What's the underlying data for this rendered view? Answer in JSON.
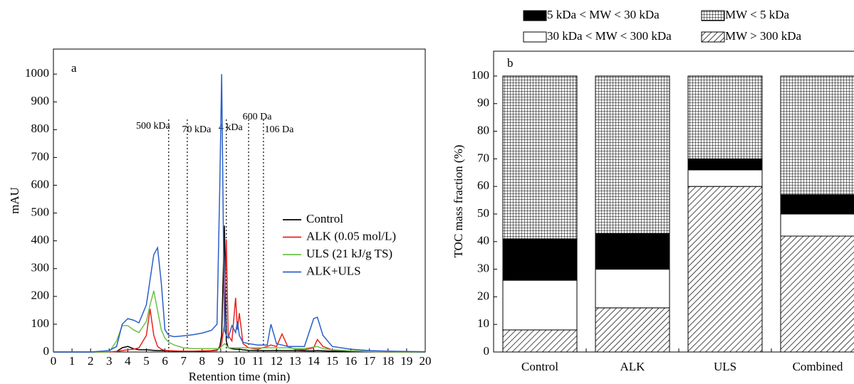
{
  "chart_data": [
    {
      "type": "line",
      "panel": "a",
      "x_label": "Retention time (min)",
      "y_label": "mAU",
      "xlim": [
        0,
        20
      ],
      "xticks": [
        0,
        1,
        2,
        3,
        4,
        5,
        6,
        7,
        8,
        9,
        10,
        11,
        12,
        13,
        14,
        15,
        16,
        17,
        18,
        19,
        20
      ],
      "ylim": [
        0,
        1090
      ],
      "yticks": [
        0,
        100,
        200,
        300,
        400,
        500,
        600,
        700,
        800,
        900,
        1000
      ],
      "x": [
        0,
        1,
        2,
        3,
        3.4,
        3.7,
        4,
        4.3,
        4.6,
        5,
        5.2,
        5.4,
        5.6,
        5.8,
        6,
        6.2,
        6.5,
        7,
        7.5,
        8,
        8.5,
        8.8,
        8.95,
        9.05,
        9.2,
        9.3,
        9.4,
        9.6,
        9.8,
        9.9,
        10,
        10.2,
        10.5,
        11,
        11.5,
        11.7,
        12,
        12.3,
        12.6,
        13,
        13.5,
        14,
        14.2,
        14.5,
        15,
        16,
        17,
        18,
        19,
        20
      ],
      "series": [
        {
          "name": "Control",
          "color": "#000000",
          "values": [
            0,
            0,
            0,
            0,
            2,
            15,
            20,
            12,
            8,
            8,
            7,
            6,
            5,
            5,
            4,
            4,
            3,
            3,
            3,
            3,
            4,
            6,
            20,
            60,
            455,
            40,
            15,
            12,
            10,
            10,
            10,
            8,
            6,
            5,
            5,
            5,
            6,
            5,
            5,
            5,
            4,
            4,
            5,
            4,
            3,
            2,
            1,
            0,
            0,
            0
          ]
        },
        {
          "name": "ALK (0.05 mol/L)",
          "color": "#e8221e",
          "values": [
            0,
            0,
            0,
            0,
            2,
            5,
            8,
            10,
            15,
            60,
            155,
            60,
            20,
            10,
            6,
            5,
            4,
            3,
            3,
            4,
            5,
            8,
            15,
            30,
            100,
            405,
            60,
            40,
            195,
            80,
            140,
            30,
            15,
            10,
            20,
            25,
            20,
            65,
            20,
            10,
            8,
            15,
            45,
            20,
            8,
            4,
            2,
            1,
            0,
            0
          ]
        },
        {
          "name": "ULS (21 kJ/g TS)",
          "color": "#6cc24a",
          "values": [
            0,
            0,
            0,
            0,
            40,
            95,
            95,
            80,
            70,
            110,
            170,
            220,
            150,
            80,
            50,
            35,
            25,
            15,
            12,
            12,
            12,
            12,
            13,
            20,
            30,
            25,
            15,
            15,
            15,
            15,
            15,
            15,
            15,
            15,
            15,
            15,
            15,
            15,
            15,
            12,
            12,
            18,
            20,
            12,
            8,
            4,
            2,
            1,
            0,
            0
          ]
        },
        {
          "name": "ALK+ULS",
          "color": "#2a5fc9",
          "values": [
            0,
            0,
            0,
            5,
            20,
            100,
            120,
            115,
            105,
            170,
            260,
            350,
            375,
            250,
            80,
            60,
            55,
            58,
            62,
            68,
            78,
            100,
            600,
            1000,
            80,
            60,
            50,
            95,
            70,
            110,
            60,
            35,
            30,
            25,
            25,
            100,
            30,
            25,
            20,
            20,
            20,
            120,
            125,
            60,
            20,
            10,
            5,
            3,
            2,
            1
          ]
        }
      ],
      "markers": [
        {
          "value": 6.2,
          "label": "500 kDa"
        },
        {
          "value": 7.2,
          "label": "70 kDa"
        },
        {
          "value": 9.3,
          "label": "4 kDa"
        },
        {
          "value": 10.5,
          "label": "600 Da"
        },
        {
          "value": 11.3,
          "label": "106 Da"
        }
      ]
    },
    {
      "type": "stacked_bar",
      "panel": "b",
      "y_label": "TOC mass fraction (%)",
      "ylim": [
        0,
        109
      ],
      "yticks": [
        0,
        10,
        20,
        30,
        40,
        50,
        60,
        70,
        80,
        90,
        100
      ],
      "categories": [
        "Control",
        "ALK",
        "ULS",
        "Combined"
      ],
      "series": [
        {
          "name": "MW > 300 kDa",
          "color": "#000000",
          "pattern": "hatch",
          "values": [
            8,
            16,
            60,
            42
          ]
        },
        {
          "name": "30 kDa < MW < 300 kDa",
          "color": "#ffffff",
          "values": [
            18,
            14,
            6,
            8
          ]
        },
        {
          "name": "5 kDa < MW < 30 kDa",
          "color": "#000000",
          "values": [
            15,
            13,
            4,
            7
          ]
        },
        {
          "name": "MW < 5 kDa",
          "color": "#000000",
          "pattern": "grid",
          "values": [
            59,
            57,
            30,
            43
          ]
        }
      ]
    }
  ]
}
